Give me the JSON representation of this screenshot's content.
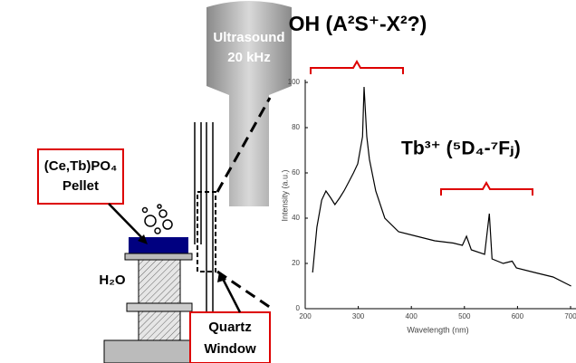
{
  "labels": {
    "ultrasound": "Ultrasound",
    "frequency": "20 kHz",
    "pellet_formula": "(Ce,Tb)PO₄",
    "pellet": "Pellet",
    "water": "H₂O",
    "quartz": "Quartz",
    "window": "Window",
    "oh_band": "OH (A²S⁺-X²?)",
    "tb_band": "Tb³⁺ (⁵D₄-⁷Fⱼ)"
  },
  "chart_data": {
    "type": "line",
    "xlabel": "Wavelength (nm)",
    "ylabel": "Intensity (a.u.)",
    "x": [
      214,
      222,
      231,
      239,
      248,
      256,
      265,
      273,
      282,
      291,
      299,
      308,
      311,
      316,
      321,
      333,
      350,
      376,
      410,
      444,
      479,
      496,
      504,
      513,
      538,
      547,
      552,
      573,
      590,
      598,
      632,
      667,
      701
    ],
    "values": [
      16,
      36,
      48,
      52,
      49,
      46,
      49,
      52,
      56,
      60,
      64,
      76,
      98,
      76,
      66,
      52,
      40,
      34,
      32,
      30,
      29,
      28,
      32,
      26,
      24,
      42,
      22,
      20,
      21,
      18,
      16,
      14,
      10
    ],
    "color": "#000000",
    "xlim": [
      200,
      700
    ],
    "ylim": [
      0,
      100
    ],
    "xticks": [
      200,
      300,
      400,
      500,
      600,
      700
    ],
    "yticks": [
      0,
      20,
      40,
      60,
      80,
      100
    ]
  }
}
